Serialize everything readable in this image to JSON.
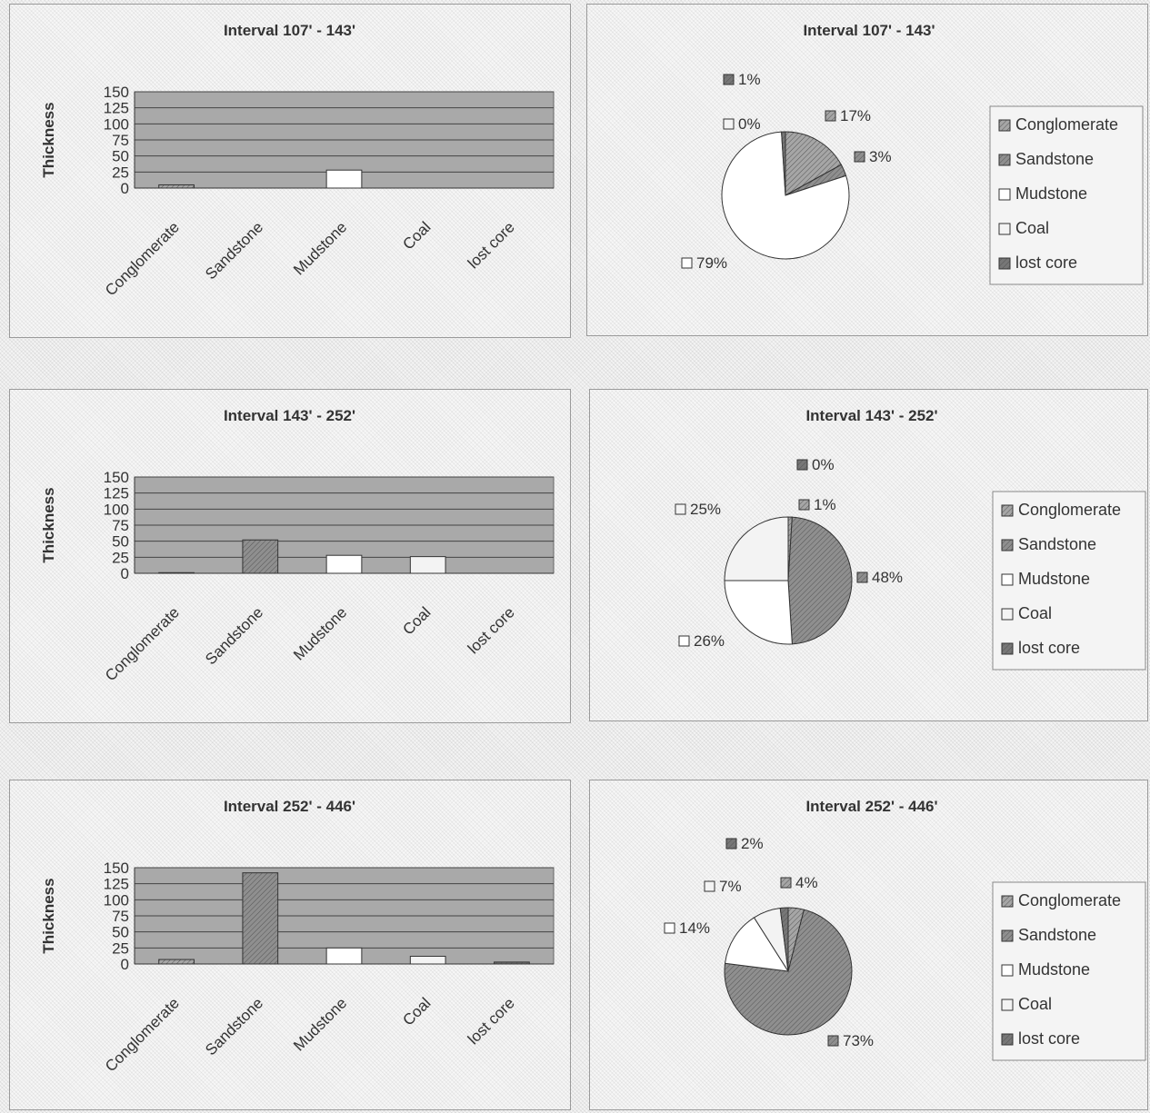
{
  "colors": {
    "conglomerate": "#a6a6a6",
    "sandstone": "#8f8f8f",
    "mudstone": "#ffffff",
    "coal": "#f3f3f3",
    "lost_core": "#777777",
    "plot_area": "#a9a9a9"
  },
  "chart_data": [
    {
      "type": "bar",
      "title": "Interval 107' - 143'",
      "ylabel": "Thickness",
      "ylim": [
        0,
        150
      ],
      "yticks": [
        "150",
        "125",
        "100",
        "75",
        "50",
        "25",
        "0"
      ],
      "categories": [
        "Conglomerate",
        "Sandstone",
        "Mudstone",
        "Coal",
        "lost core"
      ],
      "values": [
        5,
        0,
        28,
        0,
        0
      ]
    },
    {
      "type": "pie",
      "title": "Interval 107' - 143'",
      "legend": [
        "Conglomerate",
        "Sandstone",
        "Mudstone",
        "Coal",
        "lost core"
      ],
      "legend_position": "right",
      "values": [
        17,
        3,
        79,
        0,
        1
      ],
      "labels": [
        "17%",
        "3%",
        "79%",
        "0%",
        "1%"
      ]
    },
    {
      "type": "bar",
      "title": "Interval 143' - 252'",
      "ylabel": "Thickness",
      "ylim": [
        0,
        150
      ],
      "yticks": [
        "150",
        "125",
        "100",
        "75",
        "50",
        "25",
        "0"
      ],
      "categories": [
        "Conglomerate",
        "Sandstone",
        "Mudstone",
        "Coal",
        "lost core"
      ],
      "values": [
        1,
        52,
        28,
        26,
        0
      ]
    },
    {
      "type": "pie",
      "title": "Interval 143' - 252'",
      "legend": [
        "Conglomerate",
        "Sandstone",
        "Mudstone",
        "Coal",
        "lost core"
      ],
      "legend_position": "right",
      "values": [
        1,
        48,
        26,
        25,
        0
      ],
      "labels": [
        "1%",
        "48%",
        "26%",
        "25%",
        "0%"
      ]
    },
    {
      "type": "bar",
      "title": "Interval 252' - 446'",
      "ylabel": "Thickness",
      "ylim": [
        0,
        150
      ],
      "yticks": [
        "150",
        "125",
        "100",
        "75",
        "50",
        "25",
        "0"
      ],
      "categories": [
        "Conglomerate",
        "Sandstone",
        "Mudstone",
        "Coal",
        "lost core"
      ],
      "values": [
        7,
        142,
        25,
        12,
        3
      ]
    },
    {
      "type": "pie",
      "title": "Interval 252' - 446'",
      "legend": [
        "Conglomerate",
        "Sandstone",
        "Mudstone",
        "Coal",
        "lost core"
      ],
      "legend_position": "right",
      "values": [
        4,
        73,
        14,
        7,
        2
      ],
      "labels": [
        "4%",
        "73%",
        "14%",
        "7%",
        "2%"
      ]
    }
  ]
}
